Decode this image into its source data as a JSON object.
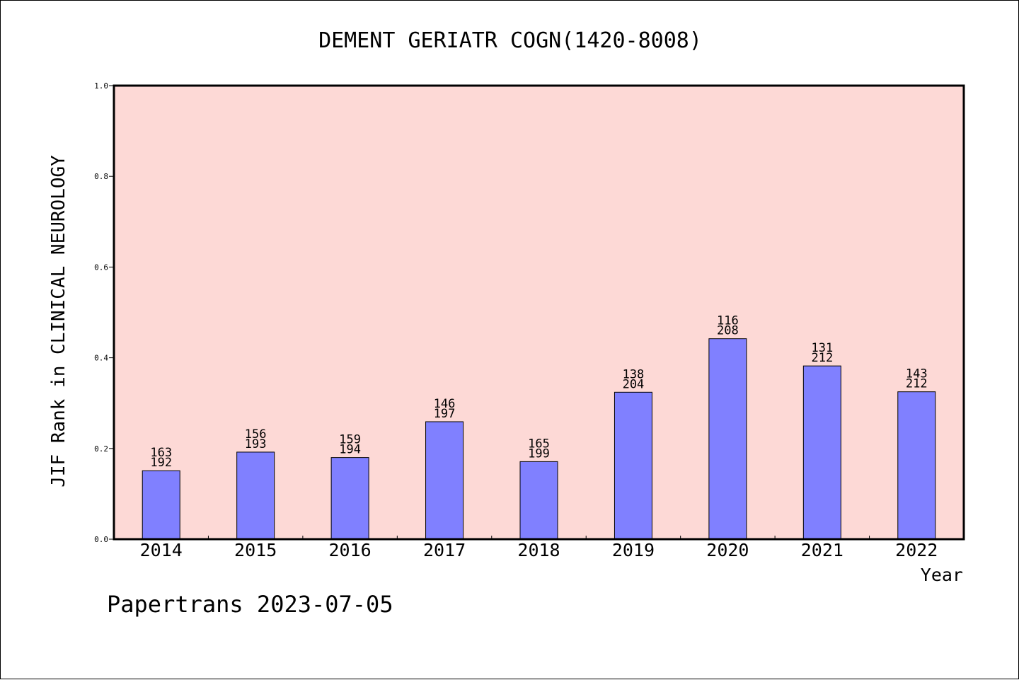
{
  "chart_data": {
    "type": "bar",
    "title": "DEMENT GERIATR COGN(1420-8008)",
    "xlabel": "Year",
    "ylabel": "JIF Rank in CLINICAL NEUROLOGY",
    "ylim": [
      0,
      1.0
    ],
    "yticks": [
      "0.0",
      "0.2",
      "0.4",
      "0.6",
      "0.8",
      "1.0"
    ],
    "categories": [
      "2014",
      "2015",
      "2016",
      "2017",
      "2018",
      "2019",
      "2020",
      "2021",
      "2022"
    ],
    "values": [
      0.151,
      0.192,
      0.18,
      0.259,
      0.171,
      0.324,
      0.442,
      0.382,
      0.325
    ],
    "bar_labels": [
      {
        "rank": "163",
        "total": "192"
      },
      {
        "rank": "156",
        "total": "193"
      },
      {
        "rank": "159",
        "total": "194"
      },
      {
        "rank": "146",
        "total": "197"
      },
      {
        "rank": "165",
        "total": "199"
      },
      {
        "rank": "138",
        "total": "204"
      },
      {
        "rank": "116",
        "total": "208"
      },
      {
        "rank": "131",
        "total": "212"
      },
      {
        "rank": "143",
        "total": "212"
      }
    ],
    "grid": false,
    "colors": {
      "plot_background": "#fdd9d6",
      "bar_fill": "#8080ff",
      "bar_stroke": "#000000"
    }
  },
  "footer": "Papertrans 2023-07-05"
}
